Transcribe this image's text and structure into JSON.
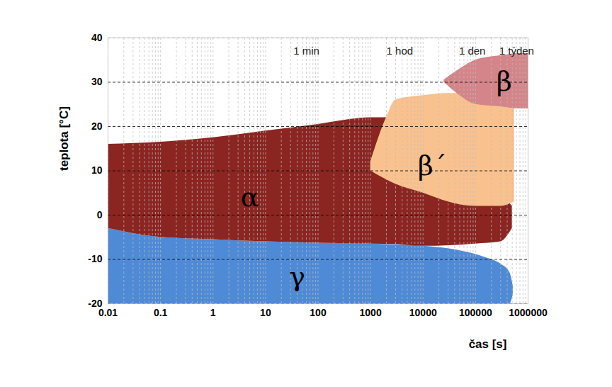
{
  "chart_data": {
    "type": "area",
    "x_label": "čas [s]",
    "y_label": "teplota [°C]",
    "log": "x",
    "grid": true,
    "xlim": [
      0.01,
      1000000
    ],
    "ylim": [
      -20,
      40
    ],
    "xticks": [
      0.01,
      0.1,
      1,
      10,
      100,
      1000,
      10000,
      100000,
      1000000
    ],
    "yticks": [
      -20,
      -10,
      0,
      10,
      20,
      30,
      40
    ],
    "series": [
      {
        "name": "γ",
        "color": "#4f8ad6",
        "label_at": [
          40,
          -14
        ],
        "x": [
          0.01,
          0.1,
          1,
          10,
          100,
          1000,
          10000,
          50000,
          150000,
          300000,
          450000,
          520000
        ],
        "y1": [
          -20,
          -20,
          -20,
          -20,
          -20,
          -20,
          -20,
          -20,
          -20,
          -20,
          -20,
          -18
        ],
        "y2": [
          -3,
          -5,
          -5.5,
          -6,
          -6.3,
          -6.5,
          -7,
          -8,
          -9.5,
          -11,
          -13,
          -16
        ]
      },
      {
        "name": "α",
        "color": "#8b2521",
        "label_at": [
          5,
          4
        ],
        "x": [
          0.01,
          0.1,
          1,
          10,
          100,
          1000,
          3000,
          10000,
          100000,
          300000,
          500000
        ],
        "y1": [
          -3,
          -5,
          -5.5,
          -6,
          -6.3,
          -6.5,
          -6.6,
          -7,
          -6.5,
          -6,
          -3
        ],
        "y2": [
          16,
          16.5,
          17.5,
          19,
          20.5,
          22,
          22,
          18,
          10,
          5,
          2
        ]
      },
      {
        "name": "β´",
        "color": "#f9c18e",
        "label_at": [
          15000,
          11
        ],
        "x": [
          1000,
          2000,
          3000,
          10000,
          30000,
          100000,
          300000,
          550000
        ],
        "y1": [
          10,
          8,
          7,
          5,
          3,
          2,
          2,
          3
        ],
        "y2": [
          12,
          22,
          26,
          27,
          27.5,
          27.5,
          27,
          25
        ]
      },
      {
        "name": "β",
        "color": "#d4858a",
        "label_at": [
          350000,
          30
        ],
        "x": [
          25000,
          50000,
          100000,
          300000,
          700000,
          1000000
        ],
        "y1": [
          30,
          27,
          25,
          24.5,
          24,
          24
        ],
        "y2": [
          30.5,
          33,
          35,
          36,
          36.5,
          36.5
        ]
      }
    ],
    "annotations": [
      {
        "text": "1 min",
        "x": 60,
        "y": 37
      },
      {
        "text": "1 hod",
        "x": 3600,
        "y": 37
      },
      {
        "text": "1 den",
        "x": 86400,
        "y": 37
      },
      {
        "text": "1 týden",
        "x": 604800,
        "y": 37
      }
    ]
  }
}
